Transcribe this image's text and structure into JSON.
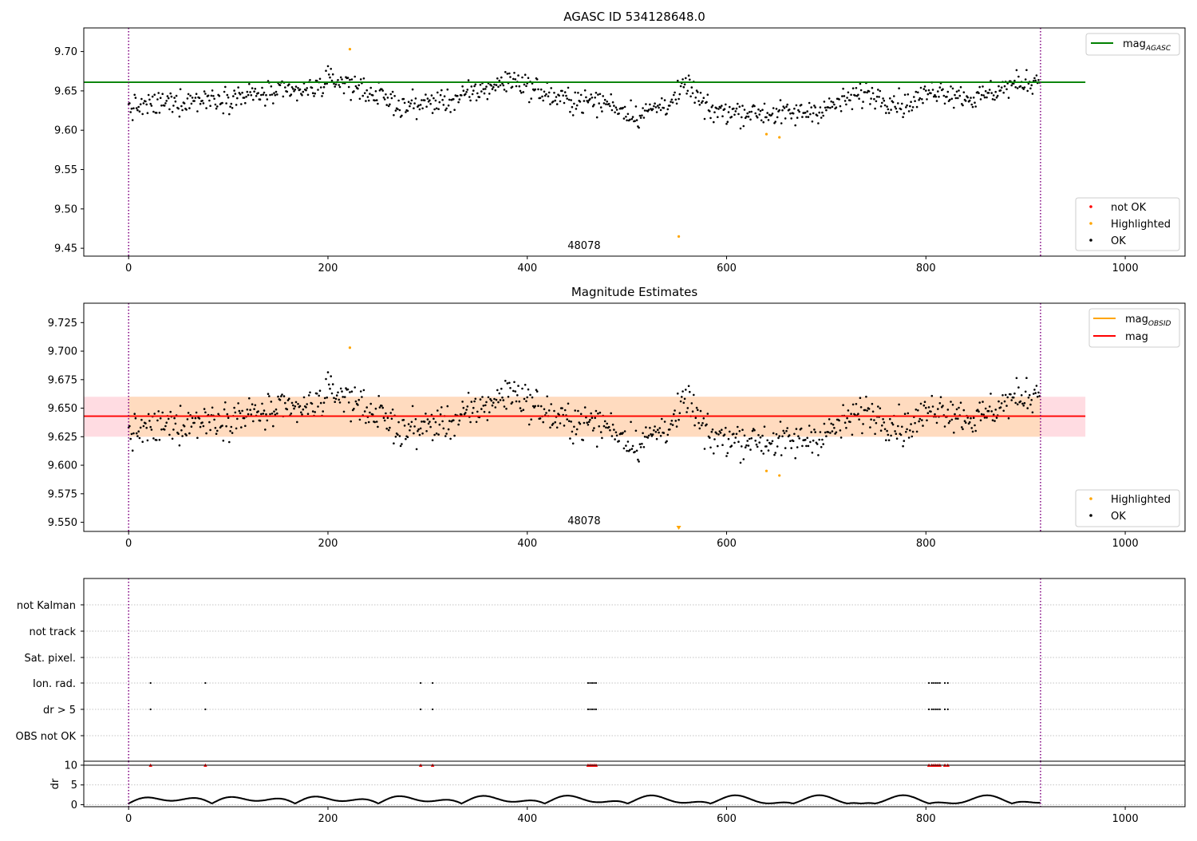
{
  "figure": {
    "colors": {
      "ok": "#000000",
      "highlighted": "#ffa500",
      "not_ok": "#ff0000",
      "mag_agasc": "#008000",
      "mag": "#ff0000",
      "mag_obsid": "#ffa500",
      "band_mag": "#ffc0cb",
      "band_obsid": "#ffdab9",
      "obsid_line": "#800080",
      "grid": "#b0b0b0"
    }
  },
  "chart_data": [
    {
      "type": "scatter",
      "title": "AGASC ID 534128648.0",
      "xlabel": "",
      "ylabel": "",
      "xlim": [
        -45,
        1060
      ],
      "ylim": [
        9.44,
        9.73
      ],
      "xticks": [
        0,
        200,
        400,
        600,
        800,
        1000
      ],
      "yticks": [
        9.45,
        9.5,
        9.55,
        9.6,
        9.65,
        9.7
      ],
      "ytick_labels": [
        "9.45",
        "9.50",
        "9.55",
        "9.60",
        "9.65",
        "9.70"
      ],
      "grid": false,
      "obsid_boundaries": [
        0,
        915
      ],
      "obsid_label": {
        "text": "48078",
        "x": 457
      },
      "lines": [
        {
          "label": "mag",
          "sub": "AGASC",
          "y": 9.661,
          "x_range": [
            -45,
            960
          ],
          "color": "#008000"
        }
      ],
      "series": [
        {
          "name": "not OK",
          "color": "#ff0000",
          "points": []
        },
        {
          "name": "Highlighted",
          "color": "#ffa500",
          "points": [
            [
              222,
              9.703
            ],
            [
              640,
              9.595
            ],
            [
              653,
              9.591
            ],
            [
              552,
              9.465
            ]
          ]
        },
        {
          "name": "OK",
          "color": "#000000",
          "generated": {
            "n": 915,
            "from": 0,
            "to": 914
          }
        }
      ],
      "legend_lines_position": "top-right",
      "legend_markers_position": "bottom-right",
      "legend_markers": [
        {
          "label": "not OK",
          "color": "#ff0000"
        },
        {
          "label": "Highlighted",
          "color": "#ffa500"
        },
        {
          "label": "OK",
          "color": "#000000"
        }
      ]
    },
    {
      "type": "scatter",
      "title": "Magnitude Estimates",
      "xlabel": "",
      "ylabel": "",
      "xlim": [
        -45,
        1060
      ],
      "ylim": [
        9.542,
        9.742
      ],
      "xticks": [
        0,
        200,
        400,
        600,
        800,
        1000
      ],
      "yticks": [
        9.55,
        9.575,
        9.6,
        9.625,
        9.65,
        9.675,
        9.7,
        9.725
      ],
      "ytick_labels": [
        "9.550",
        "9.575",
        "9.600",
        "9.625",
        "9.650",
        "9.675",
        "9.700",
        "9.725"
      ],
      "grid": false,
      "obsid_boundaries": [
        0,
        915
      ],
      "obsid_label": {
        "text": "48078",
        "x": 457
      },
      "bands": [
        {
          "y_range": [
            9.625,
            9.66
          ],
          "x_range": [
            -45,
            960
          ],
          "color": "#ffc0cb"
        },
        {
          "y_range": [
            9.625,
            9.66
          ],
          "x_range": [
            0,
            915
          ],
          "color": "#ffdab9"
        }
      ],
      "lines": [
        {
          "label": "mag",
          "sub": "OBSID",
          "y": 9.643,
          "x_range": [
            0,
            915
          ],
          "color": "#ffa500"
        },
        {
          "label": "mag",
          "sub": "",
          "y": 9.643,
          "x_range": [
            -45,
            960
          ],
          "color": "#ff0000"
        }
      ],
      "series": [
        {
          "name": "Highlighted",
          "color": "#ffa500",
          "points": [
            [
              222,
              9.703
            ],
            [
              640,
              9.595
            ],
            [
              653,
              9.591
            ]
          ],
          "offscale": [
            [
              552,
              9.465
            ]
          ]
        },
        {
          "name": "OK",
          "color": "#000000",
          "generated": {
            "n": 915,
            "from": 0,
            "to": 914
          }
        }
      ],
      "legend_lines_position": "top-right",
      "legend_markers_position": "bottom-right",
      "legend_markers": [
        {
          "label": "Highlighted",
          "color": "#ffa500"
        },
        {
          "label": "OK",
          "color": "#000000"
        }
      ]
    },
    {
      "type": "scatter",
      "title": "",
      "xlabel": "",
      "ylabel": "",
      "xlim": [
        -45,
        1060
      ],
      "xticks": [
        0,
        200,
        400,
        600,
        800,
        1000
      ],
      "obsid_boundaries": [
        0,
        915
      ],
      "flag_rows": [
        "not Kalman",
        "not track",
        "Sat. pixel.",
        "Ion. rad.",
        "dr > 5",
        "OBS not OK"
      ],
      "flag_points": {
        "Ion. rad.": [
          22,
          77,
          293,
          305,
          461,
          463,
          465,
          467,
          469,
          803,
          806,
          808,
          810,
          812,
          814,
          819,
          822
        ],
        "dr > 5": [
          22,
          77,
          293,
          305,
          461,
          463,
          465,
          467,
          469,
          803,
          806,
          808,
          810,
          812,
          814,
          819,
          822
        ]
      },
      "dr": {
        "ylabel": "dr",
        "ylim": [
          -0.5,
          11
        ],
        "yticks": [
          0,
          5,
          10
        ],
        "ytick_labels": [
          "0",
          "5",
          "10"
        ],
        "capped_value": 10,
        "capped_x": [
          22,
          77,
          293,
          305,
          461,
          463,
          465,
          467,
          469,
          803,
          806,
          808,
          810,
          812,
          814,
          819,
          822
        ]
      }
    }
  ]
}
